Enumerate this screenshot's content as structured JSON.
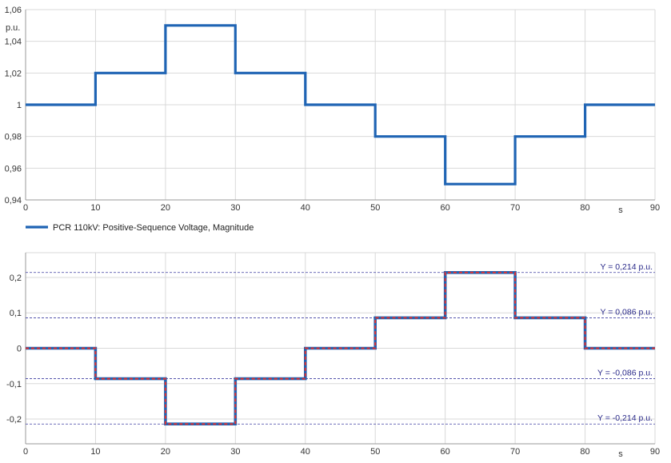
{
  "colors": {
    "series_blue": "#1f64b4",
    "series_red": "#e03030",
    "grid": "#d9d9d9",
    "axis": "#9a9a9a",
    "ref_line": "#3c3ca0"
  },
  "chart_data": [
    {
      "type": "line",
      "step": true,
      "title": "",
      "xlabel": "s",
      "ylabel": "p.u.",
      "xlim": [
        0,
        90
      ],
      "ylim": [
        0.94,
        1.06
      ],
      "x_ticks": [
        "0",
        "10",
        "20",
        "30",
        "40",
        "50",
        "60",
        "70",
        "80",
        "90"
      ],
      "y_ticks": [
        "0,94",
        "0,96",
        "0,98",
        "1",
        "1,02",
        "1,04",
        "1,06"
      ],
      "grid": true,
      "legend": "bottom-left",
      "series": [
        {
          "name": "PCR 110kV: Positive-Sequence Voltage, Magnitude",
          "x": [
            0,
            10,
            10,
            20,
            20,
            30,
            30,
            40,
            40,
            50,
            50,
            60,
            60,
            70,
            70,
            80,
            80,
            90
          ],
          "y": [
            1,
            1,
            1.02,
            1.02,
            1.05,
            1.05,
            1.02,
            1.02,
            1,
            1,
            0.98,
            0.98,
            0.95,
            0.95,
            0.98,
            0.98,
            1,
            1
          ]
        }
      ]
    },
    {
      "type": "line",
      "step": true,
      "title": "",
      "xlabel": "s",
      "ylabel": "",
      "xlim": [
        0,
        90
      ],
      "ylim": [
        -0.27,
        0.27
      ],
      "x_ticks": [
        "0",
        "10",
        "20",
        "30",
        "40",
        "50",
        "60",
        "70",
        "80",
        "90"
      ],
      "y_ticks": [
        "-0,2",
        "-0,1",
        "0",
        "0,1",
        "0,2"
      ],
      "grid": true,
      "reference_lines": [
        {
          "value": 0.214,
          "label": "Y = 0,214 p.u."
        },
        {
          "value": 0.086,
          "label": "Y = 0,086 p.u."
        },
        {
          "value": -0.086,
          "label": "Y = -0,086 p.u."
        },
        {
          "value": -0.214,
          "label": "Y = -0,214 p.u."
        }
      ],
      "series": [
        {
          "style": "solid-blue",
          "x": [
            0,
            10,
            10,
            20,
            20,
            30,
            30,
            40,
            40,
            50,
            50,
            60,
            60,
            70,
            70,
            80,
            80,
            90
          ],
          "y": [
            0,
            0,
            -0.086,
            -0.086,
            -0.214,
            -0.214,
            -0.086,
            -0.086,
            0,
            0,
            0.086,
            0.086,
            0.214,
            0.214,
            0.086,
            0.086,
            0,
            0
          ]
        },
        {
          "style": "dashed-red",
          "x": [
            0,
            10,
            10,
            20,
            20,
            30,
            30,
            40,
            40,
            50,
            50,
            60,
            60,
            70,
            70,
            80,
            80,
            90
          ],
          "y": [
            0,
            0,
            -0.086,
            -0.086,
            -0.214,
            -0.214,
            -0.086,
            -0.086,
            0,
            0,
            0.086,
            0.086,
            0.214,
            0.214,
            0.086,
            0.086,
            0,
            0
          ]
        }
      ]
    }
  ]
}
